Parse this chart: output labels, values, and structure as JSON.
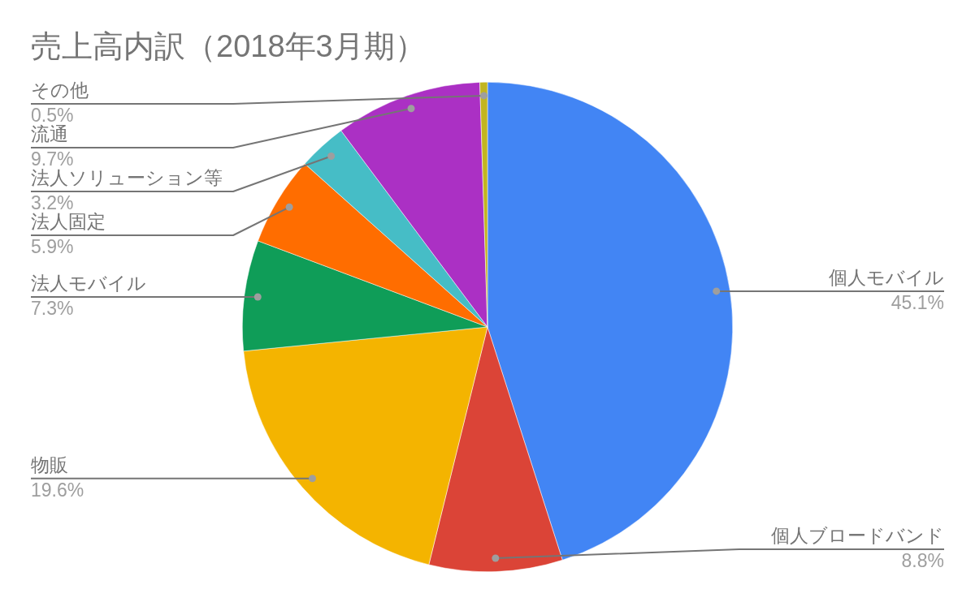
{
  "chart_data": {
    "type": "pie",
    "title": "売上高内訳（2018年3月期）",
    "categories": [
      "個人モバイル",
      "個人ブロードバンド",
      "物販",
      "法人モバイル",
      "法人固定",
      "法人ソリューション等",
      "流通",
      "その他"
    ],
    "values": [
      45.1,
      8.8,
      19.6,
      7.3,
      5.9,
      3.2,
      9.7,
      0.5
    ],
    "value_labels": [
      "45.1%",
      "8.8%",
      "19.6%",
      "7.3%",
      "5.9%",
      "3.2%",
      "9.7%",
      "0.5%"
    ],
    "colors": [
      "#4285f4",
      "#db4437",
      "#f4b400",
      "#0f9d58",
      "#ff6d00",
      "#46bdc6",
      "#ab30c4",
      "#c2b520"
    ],
    "legend": false
  }
}
